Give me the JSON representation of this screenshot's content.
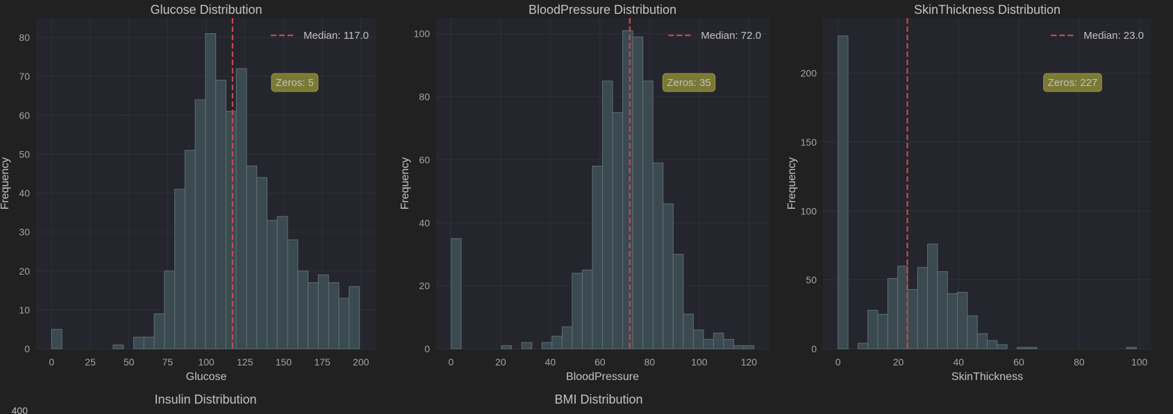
{
  "figure": {
    "background": "#212121",
    "axes_background": "#25252d",
    "bar_fill": "#3a4a50",
    "bar_edge": "#5e7175",
    "median_color": "#c84a4a",
    "zeros_box_fill": "#7a7a35",
    "zeros_box_edge": "#98983e",
    "text_color": "#c2c2c2",
    "tick_color": "#a4a4a4",
    "grid_color": "#313139"
  },
  "chart_data": [
    {
      "type": "bar",
      "title": "Glucose Distribution",
      "xlabel": "Glucose",
      "ylabel": "Frequency",
      "xlim": [
        -10,
        210
      ],
      "ylim": [
        0,
        85
      ],
      "grid": true,
      "legend_position": "top-right",
      "xticks": [
        0,
        25,
        50,
        75,
        100,
        125,
        150,
        175,
        200
      ],
      "yticks": [
        0,
        10,
        20,
        30,
        40,
        50,
        60,
        70,
        80
      ],
      "bin_start": 0,
      "bin_width": 6.633,
      "values": [
        5,
        0,
        0,
        0,
        0,
        0,
        1,
        0,
        3,
        3,
        9,
        20,
        41,
        51,
        64,
        81,
        69,
        61,
        72,
        47,
        44,
        33,
        34,
        28,
        20,
        17,
        19,
        17,
        13,
        16
      ],
      "median": 117.0,
      "median_label": "Median: 117.0",
      "zeros_label": "Zeros: 5"
    },
    {
      "type": "bar",
      "title": "BloodPressure Distribution",
      "xlabel": "BloodPressure",
      "ylabel": "Frequency",
      "xlim": [
        -6,
        128
      ],
      "ylim": [
        0,
        105
      ],
      "grid": true,
      "legend_position": "top-right",
      "xticks": [
        0,
        20,
        40,
        60,
        80,
        100,
        120
      ],
      "yticks": [
        0,
        20,
        40,
        60,
        80,
        100
      ],
      "bin_start": 0,
      "bin_width": 4.067,
      "values": [
        35,
        0,
        0,
        0,
        0,
        1,
        0,
        2,
        0,
        2,
        4,
        7,
        24,
        25,
        58,
        85,
        75,
        101,
        99,
        85,
        59,
        46,
        30,
        11,
        6,
        3,
        5,
        3,
        1,
        1
      ],
      "median": 72.0,
      "median_label": "Median: 72.0",
      "zeros_label": "Zeros: 35"
    },
    {
      "type": "bar",
      "title": "SkinThickness Distribution",
      "xlabel": "SkinThickness",
      "ylabel": "Frequency",
      "xlim": [
        -5,
        104
      ],
      "ylim": [
        0,
        240
      ],
      "grid": true,
      "legend_position": "top-right",
      "xticks": [
        0,
        20,
        40,
        60,
        80,
        100
      ],
      "yticks": [
        0,
        50,
        100,
        150,
        200
      ],
      "bin_start": 0,
      "bin_width": 3.3,
      "values": [
        227,
        0,
        4,
        28,
        25,
        51,
        60,
        43,
        59,
        76,
        56,
        40,
        41,
        24,
        11,
        6,
        3,
        0,
        1,
        1,
        0,
        0,
        0,
        0,
        0,
        0,
        0,
        0,
        0,
        1
      ],
      "median": 23.0,
      "median_label": "Median: 23.0",
      "zeros_label": "Zeros: 227"
    }
  ],
  "lower_row": {
    "titles": [
      "Insulin Distribution",
      "BMI Distribution"
    ],
    "first_ytick": "400"
  }
}
